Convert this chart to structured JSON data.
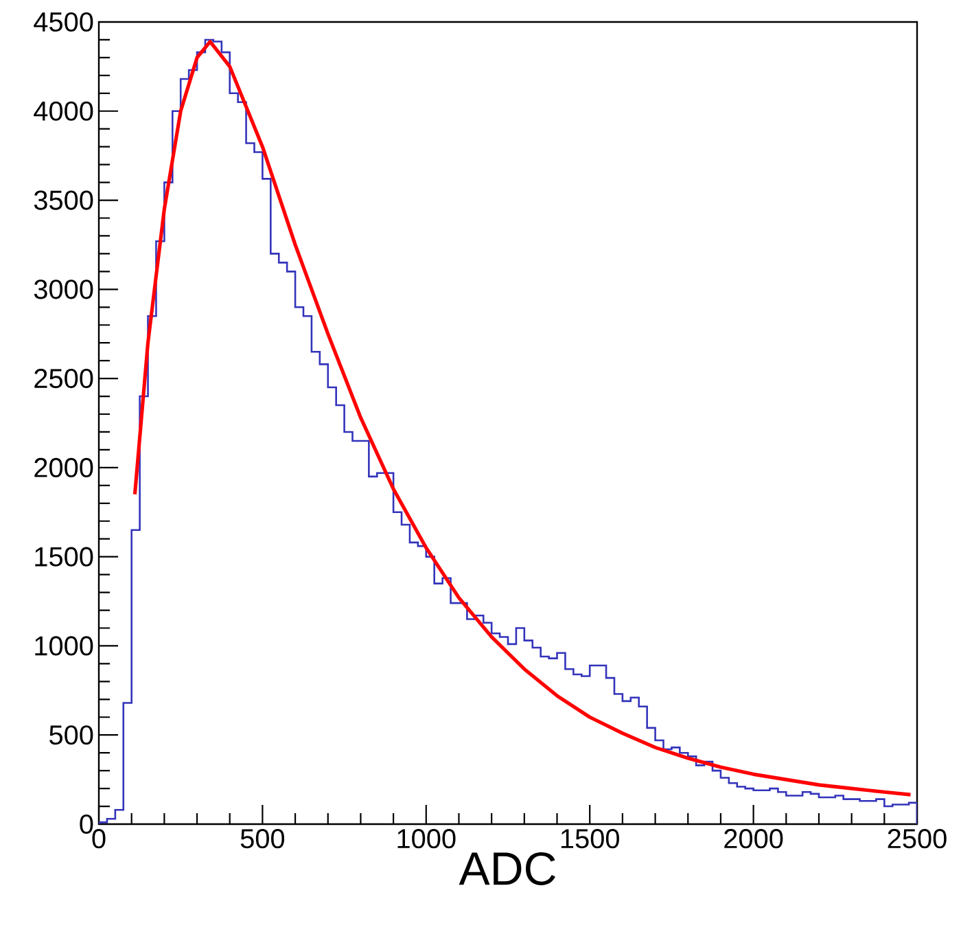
{
  "chart_data": {
    "type": "histogram",
    "xlabel": "ADC",
    "bins": [
      0,
      25,
      50,
      75,
      100,
      125,
      150,
      175,
      200,
      225,
      250,
      275,
      300,
      325,
      350,
      375,
      400,
      425,
      450,
      475,
      500,
      525,
      550,
      575,
      600,
      625,
      650,
      675,
      700,
      725,
      750,
      775,
      800,
      825,
      850,
      875,
      900,
      925,
      950,
      975,
      1000,
      1025,
      1050,
      1075,
      1100,
      1125,
      1150,
      1175,
      1200,
      1225,
      1250,
      1275,
      1300,
      1325,
      1350,
      1375,
      1400,
      1425,
      1450,
      1475,
      1500,
      1525,
      1550,
      1575,
      1600,
      1625,
      1650,
      1675,
      1700,
      1725,
      1750,
      1775,
      1800,
      1825,
      1850,
      1875,
      1900,
      1925,
      1950,
      1975,
      2000,
      2025,
      2050,
      2075,
      2100,
      2125,
      2150,
      2175,
      2200,
      2225,
      2250,
      2275,
      2300,
      2325,
      2350,
      2375,
      2400,
      2425,
      2450,
      2475,
      2500
    ],
    "series": [
      {
        "color": "#3333bb",
        "values": [
          10,
          30,
          80,
          680,
          1650,
          2400,
          2850,
          3270,
          3600,
          4000,
          4180,
          4230,
          4330,
          4400,
          4390,
          4330,
          4100,
          4050,
          3820,
          3770,
          3620,
          3200,
          3150,
          3100,
          2900,
          2850,
          2650,
          2580,
          2450,
          2350,
          2200,
          2150,
          2150,
          1950,
          1970,
          1970,
          1750,
          1680,
          1580,
          1560,
          1500,
          1350,
          1380,
          1240,
          1240,
          1150,
          1170,
          1130,
          1070,
          1050,
          1010,
          1100,
          1030,
          990,
          940,
          930,
          960,
          870,
          840,
          830,
          890,
          890,
          820,
          730,
          690,
          710,
          660,
          540,
          470,
          420,
          430,
          400,
          380,
          330,
          350,
          300,
          260,
          230,
          210,
          200,
          190,
          190,
          200,
          180,
          160,
          160,
          180,
          170,
          150,
          150,
          160,
          140,
          140,
          130,
          130,
          140,
          100,
          110,
          110,
          120
        ]
      },
      {
        "type": "line",
        "color": "#ff0000",
        "x": [
          110,
          150,
          200,
          250,
          300,
          340,
          400,
          500,
          600,
          700,
          800,
          900,
          1000,
          1100,
          1200,
          1300,
          1400,
          1500,
          1600,
          1700,
          1800,
          1900,
          2000,
          2100,
          2200,
          2300,
          2400,
          2480
        ],
        "values": [
          1850,
          2700,
          3450,
          4000,
          4300,
          4390,
          4250,
          3800,
          3250,
          2750,
          2280,
          1880,
          1550,
          1270,
          1050,
          870,
          720,
          600,
          510,
          430,
          370,
          320,
          280,
          250,
          220,
          200,
          180,
          165
        ]
      }
    ],
    "xlim": [
      0,
      2500
    ],
    "ylim": [
      0,
      4500
    ],
    "xticks": [
      0,
      500,
      1000,
      1500,
      2000,
      2500
    ],
    "yticks": [
      0,
      500,
      1000,
      1500,
      2000,
      2500,
      3000,
      3500,
      4000,
      4500
    ],
    "grid": false
  }
}
